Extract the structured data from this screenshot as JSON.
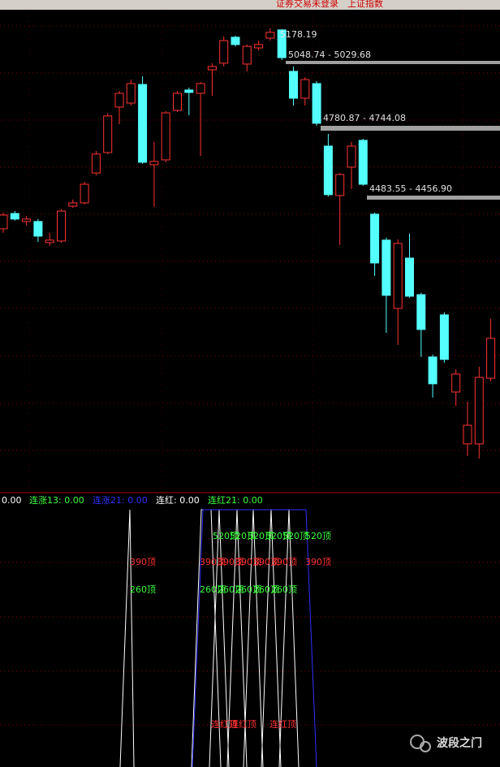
{
  "status_bar": {
    "status": "证券交易未登录",
    "index_name": "上证指数"
  },
  "chart_data": {
    "type": "candlestick",
    "up_color": "#ff3232",
    "down_color": "#54ffff",
    "ylim": [
      3113,
      5291
    ],
    "open": [
      4303,
      4372,
      4336,
      4336,
      4241,
      4248,
      4405,
      4420,
      4555,
      4647,
      4852,
      4870,
      4954,
      4592,
      4614,
      4837,
      4929,
      4914,
      5020,
      5050,
      5167,
      5046,
      5119,
      5163,
      5200,
      5013,
      4892,
      4958,
      4676,
      4453,
      4581,
      4702,
      4369,
      4252,
      3944,
      4171,
      4006,
      3725,
      3915,
      3567,
      3333,
      3333,
      3629
    ],
    "high": [
      4376,
      4383,
      4361,
      4347,
      4285,
      4391,
      4435,
      4515,
      4654,
      4823,
      4925,
      4976,
      4991,
      4695,
      4834,
      4925,
      4940,
      4965,
      5050,
      5170,
      5174,
      5134,
      5152,
      5207,
      5203,
      5035,
      4987,
      4969,
      4731,
      4555,
      4695,
      4709,
      4376,
      4263,
      4255,
      4281,
      4014,
      3736,
      3926,
      3670,
      3523,
      3681,
      3897
    ],
    "low": [
      4285,
      4340,
      4318,
      4244,
      4226,
      4241,
      4398,
      4413,
      4544,
      4640,
      4775,
      4859,
      4596,
      4402,
      4603,
      4830,
      4815,
      4632,
      4903,
      5035,
      5126,
      5013,
      5108,
      5152,
      5064,
      4859,
      4859,
      4768,
      4449,
      4230,
      4482,
      4497,
      4091,
      3834,
      3779,
      3992,
      3725,
      3542,
      3699,
      3505,
      3278,
      3267,
      3615
    ],
    "close": [
      4365,
      4347,
      4347,
      4270,
      4252,
      4383,
      4420,
      4504,
      4640,
      4812,
      4914,
      4958,
      4603,
      4607,
      4826,
      4914,
      4918,
      4958,
      5035,
      5152,
      5134,
      5126,
      5134,
      5189,
      5075,
      4892,
      4976,
      4779,
      4457,
      4548,
      4676,
      4504,
      4149,
      4003,
      4237,
      3999,
      3849,
      3604,
      3714,
      3648,
      3417,
      3633,
      3809
    ],
    "annotations": [
      "5178.19",
      "5048.74 - 5029.68",
      "4780.87 - 4744.08",
      "4483.55 - 4456.90"
    ]
  },
  "indicator": {
    "header": [
      "0.00",
      "连涨13: 0.00",
      "连涨21: 0.00",
      "连红: 0.00",
      "连红21: 0.00"
    ],
    "tags": [
      "520顶",
      "520顶",
      "520顶",
      "520顶",
      "520顶",
      "520顶",
      "390顶",
      "390顶",
      "390顶",
      "390顶",
      "390顶",
      "390顶",
      "390顶",
      "260顶",
      "260顶",
      "260顶",
      "260顶",
      "260顶",
      "260顶",
      "连红顶",
      "连红顶",
      "连红顶"
    ]
  },
  "watermark": "波段之门"
}
